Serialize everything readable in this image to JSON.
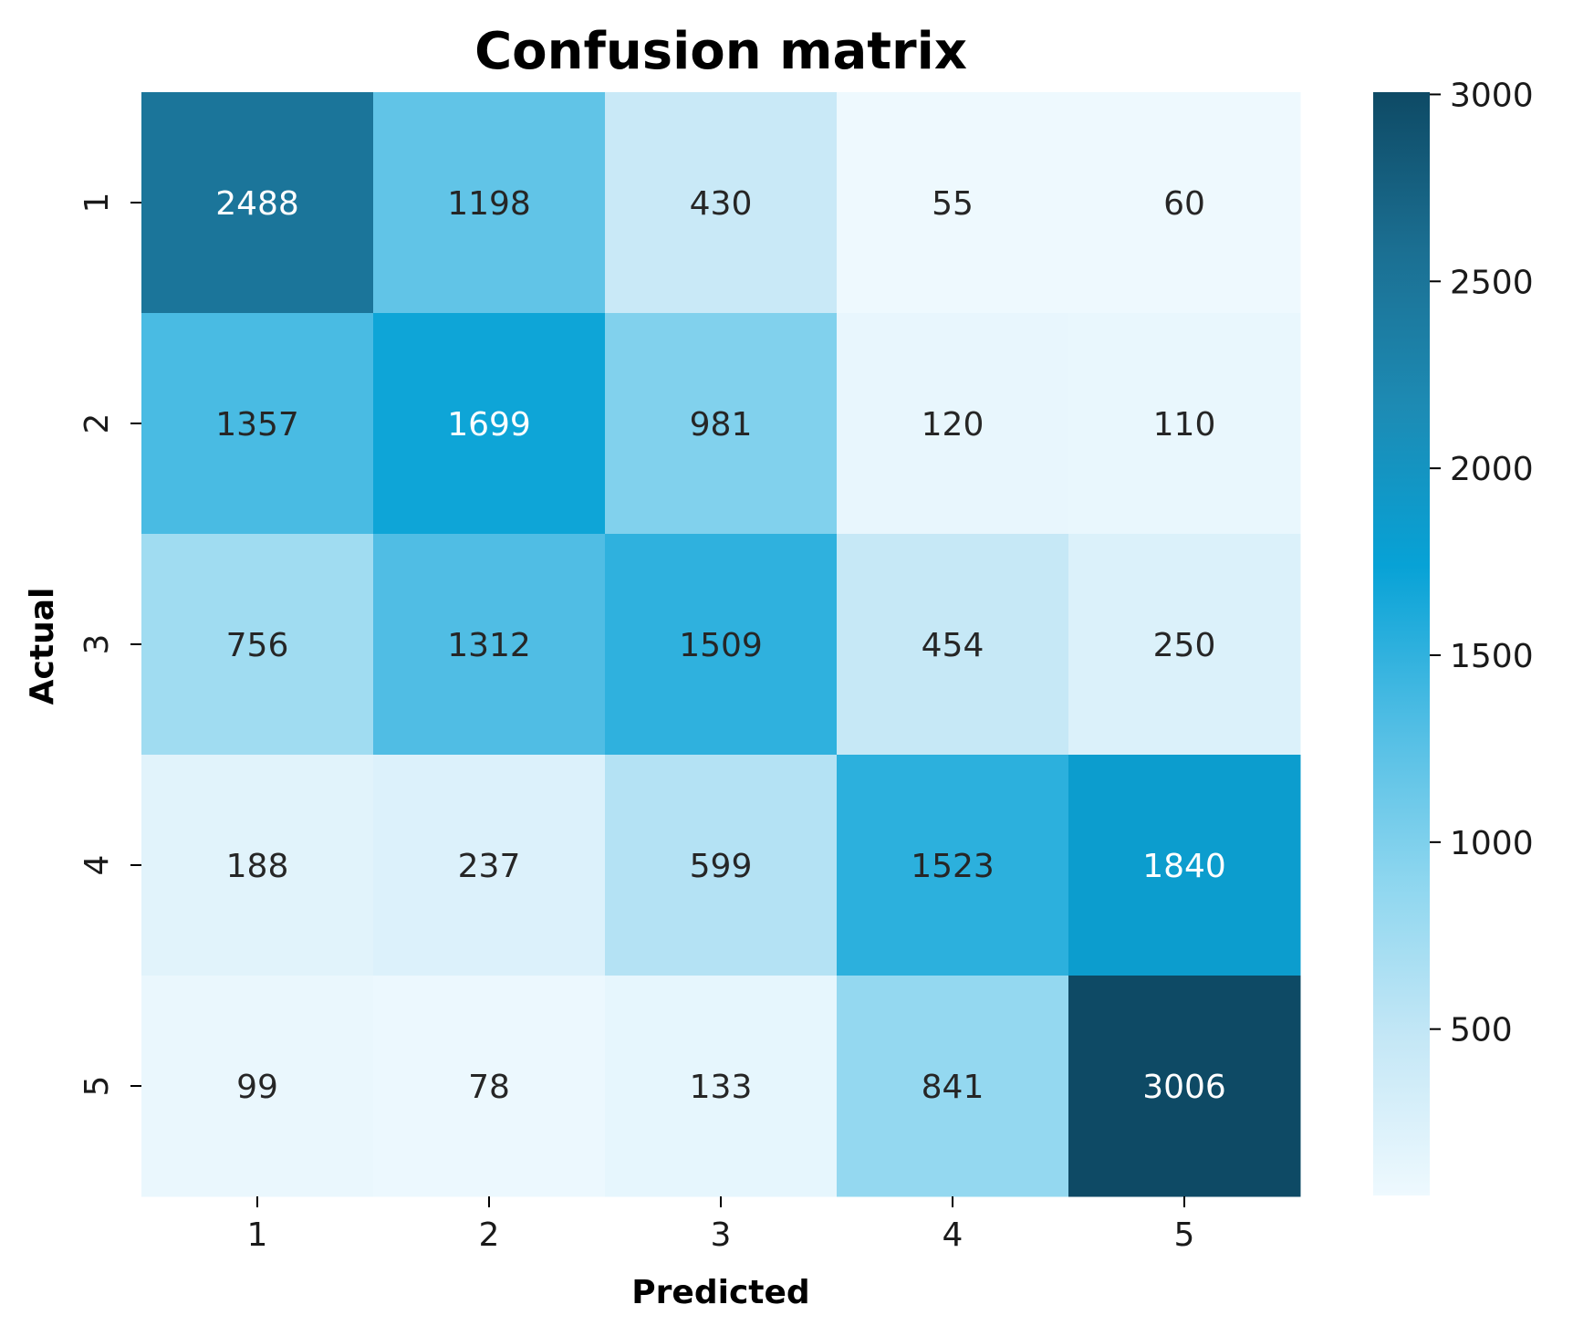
{
  "chart_data": {
    "type": "heatmap",
    "title": "Confusion matrix",
    "xlabel": "Predicted",
    "ylabel": "Actual",
    "x_categories": [
      "1",
      "2",
      "3",
      "4",
      "5"
    ],
    "y_categories": [
      "1",
      "2",
      "3",
      "4",
      "5"
    ],
    "values": [
      [
        2488,
        1198,
        430,
        55,
        60
      ],
      [
        1357,
        1699,
        981,
        120,
        110
      ],
      [
        756,
        1312,
        1509,
        454,
        250
      ],
      [
        188,
        237,
        599,
        1523,
        1840
      ],
      [
        99,
        78,
        133,
        841,
        3006
      ]
    ],
    "colorbar": {
      "min": 55,
      "max": 3006,
      "ticks": [
        500,
        1000,
        1500,
        2000,
        2500,
        3000
      ],
      "tick_labels": [
        "500",
        "1000",
        "1500",
        "2000",
        "2500",
        "3000"
      ],
      "colors": [
        "#eef9fe",
        "#c4e7f6",
        "#8dd6ef",
        "#4fbde4",
        "#07a2d6",
        "#1d8bb4",
        "#1b6f92",
        "#0e4a65"
      ]
    },
    "grid": false,
    "colors": {
      "dark_text": "#262626",
      "light_text": "#ffffff"
    }
  }
}
